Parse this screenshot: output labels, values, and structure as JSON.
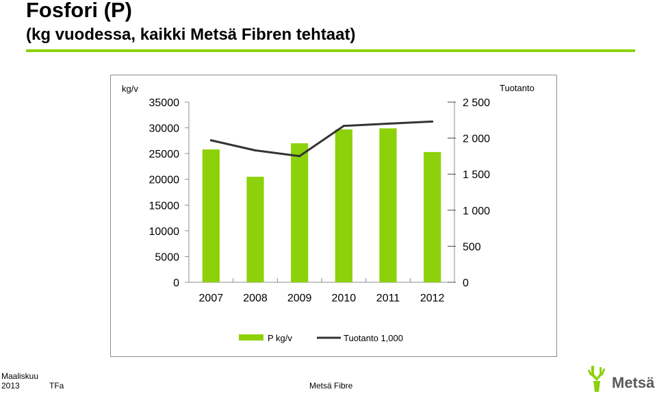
{
  "slide": {
    "title": "Fosfori (P)",
    "subtitle": "(kg vuodessa, kaikki Metsä Fibren tehtaat)",
    "accent_color": "#8dd10b"
  },
  "chart_data": {
    "type": "bar+line",
    "categories": [
      "2007",
      "2008",
      "2009",
      "2010",
      "2011",
      "2012"
    ],
    "y_left": {
      "unit_label": "kg/v",
      "ylim": [
        0,
        35000
      ],
      "ticks": [
        "0",
        "5000",
        "10000",
        "15000",
        "20000",
        "25000",
        "30000",
        "35000"
      ]
    },
    "y_right": {
      "unit_label": "Tuotanto",
      "ylim": [
        0,
        2500
      ],
      "ticks": [
        "0",
        "500",
        "1 000",
        "1 500",
        "2 000",
        "2 500"
      ]
    },
    "series": [
      {
        "name": "P kg/v",
        "type": "bar",
        "axis": "left",
        "color": "#8dd10b",
        "values": [
          25800,
          20500,
          27000,
          29700,
          29900,
          25300
        ]
      },
      {
        "name": "Tuotanto 1,000",
        "type": "line",
        "axis": "right",
        "color": "#333333",
        "values": [
          1970,
          1830,
          1750,
          2170,
          2200,
          2230
        ]
      }
    ],
    "legend_position": "bottom",
    "grid": false
  },
  "footer": {
    "date_line1": "Maaliskuu",
    "date_line2": "2013",
    "author": "TFa",
    "company": "Metsä Fibre",
    "logo_text": "Metsä"
  }
}
